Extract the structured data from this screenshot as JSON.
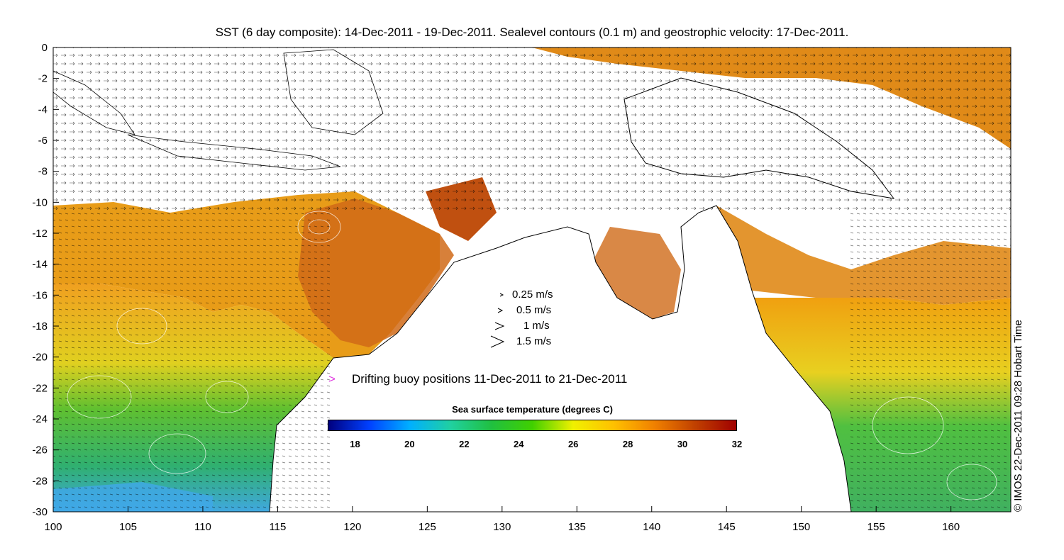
{
  "title": "SST (6 day composite): 14-Dec-2011 - 19-Dec-2011. Sealevel contours (0.1 m) and geostrophic velocity: 17-Dec-2011.",
  "credit": "© IMOS 22-Dec-2011 09:28 Hobart Time",
  "x_ticks": [
    "100",
    "105",
    "110",
    "115",
    "120",
    "125",
    "130",
    "135",
    "140",
    "145",
    "150",
    "155",
    "160"
  ],
  "y_ticks": [
    "0",
    "-2",
    "-4",
    "-6",
    "-8",
    "-10",
    "-12",
    "-14",
    "-16",
    "-18",
    "-20",
    "-22",
    "-24",
    "-26",
    "-28",
    "-30"
  ],
  "velocity_legend": [
    {
      "label": "0.25 m/s",
      "speed": 0.25
    },
    {
      "label": "0.5 m/s",
      "speed": 0.5
    },
    {
      "label": "1 m/s",
      "speed": 1
    },
    {
      "label": "1.5 m/s",
      "speed": 1.5
    }
  ],
  "buoy_label": "Drifting buoy positions 11-Dec-2011 to 21-Dec-2011",
  "buoy_color": "#e040e0",
  "colorbar": {
    "title": "Sea surface temperature (degrees C)",
    "ticks": [
      "18",
      "20",
      "22",
      "24",
      "26",
      "28",
      "30",
      "32"
    ],
    "min": 17,
    "max": 32,
    "stops": [
      "#00007f",
      "#0040ff",
      "#00b0ff",
      "#20d0a0",
      "#20c040",
      "#40d000",
      "#f0f000",
      "#ffc000",
      "#f08000",
      "#c04000",
      "#a00000"
    ]
  },
  "map": {
    "lon_min": 100,
    "lon_max": 164,
    "lat_min": -30,
    "lat_max": 0,
    "ocean_colors": {
      "warm": "#e08010",
      "hot": "#c05010",
      "mid": "#f0c020",
      "cool": "#40c040",
      "cold": "#40a0e0"
    }
  }
}
